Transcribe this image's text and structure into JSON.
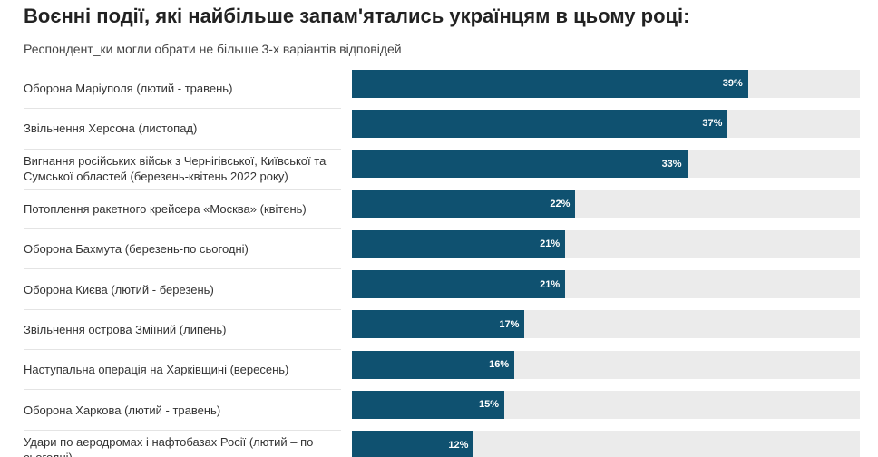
{
  "chart_data": {
    "type": "hbar",
    "title": "Воєнні події, які найбільше запам'ятались українцям в цьому році:",
    "subtitle": "Респондент_ки могли обрати не більше 3-х варіантів відповідей",
    "categories": [
      "Оборона Маріуполя (лютий - травень)",
      "Звільнення Херсона (листопад)",
      "Вигнання російських військ з Чернігівської, Київської та Сумської областей (березень-квітень 2022 року)",
      "Потоплення ракетного крейсера «Москва» (квітень)",
      "Оборона Бахмута (березень-по сьогодні)",
      "Оборона Києва (лютий - березень)",
      "Звільнення острова Зміїний (липень)",
      "Наступальна операція на Харківщині (вересень)",
      "Оборона Харкова (лютий - травень)",
      "Удари по аеродромах і нафтобазах Росії (лютий – по сьогодні)"
    ],
    "values": [
      39,
      37,
      33,
      22,
      21,
      21,
      17,
      16,
      15,
      12
    ],
    "value_labels": [
      "39%",
      "37%",
      "33%",
      "22%",
      "21%",
      "21%",
      "17%",
      "16%",
      "15%",
      "12%"
    ],
    "color": "#0f5170",
    "xlim": [
      0,
      50
    ]
  }
}
